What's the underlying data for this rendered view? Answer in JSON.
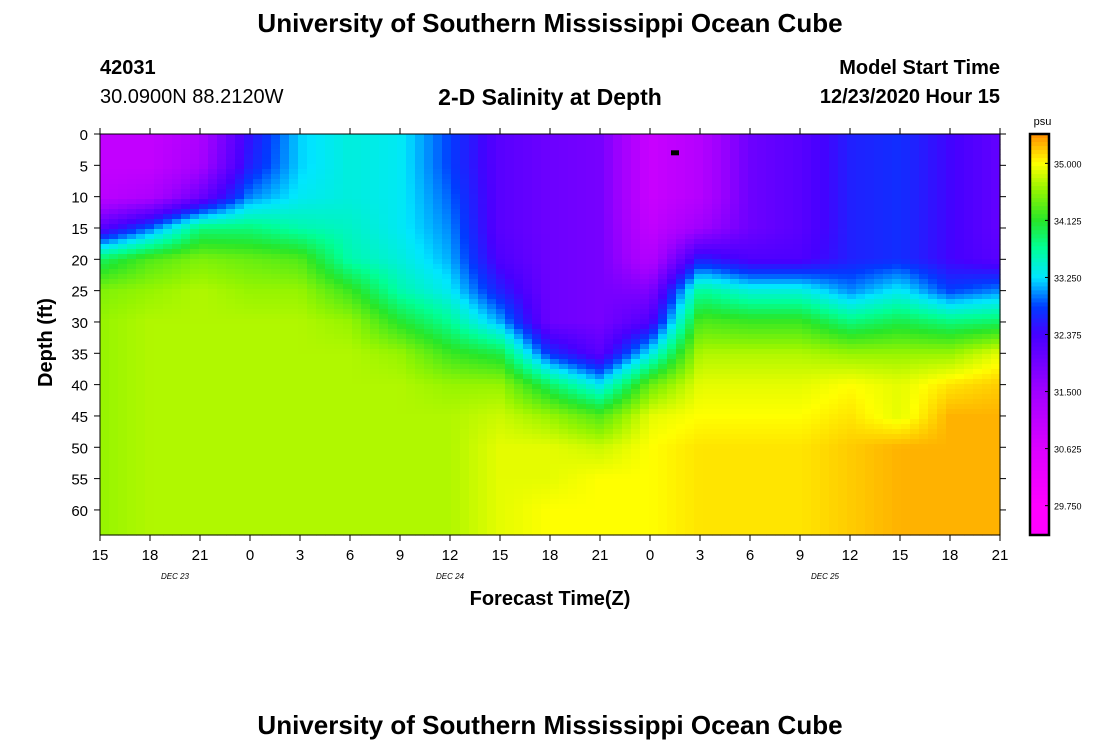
{
  "header": {
    "title": "University of Southern Mississippi Ocean Cube",
    "footer_title": "University of Southern Mississippi Ocean Cube",
    "station_id": "42031",
    "station_coords": "30.0900N 88.2120W",
    "plot_title": "2-D Salinity at Depth",
    "model_start_label": "Model Start Time",
    "model_start_value": "12/23/2020 Hour 15"
  },
  "chart_data": {
    "type": "heatmap",
    "title": "2-D Salinity at Depth",
    "xlabel": "Forecast Time(Z)",
    "ylabel": "Depth (ft)",
    "x_ticks": [
      "15",
      "18",
      "21",
      "0",
      "3",
      "6",
      "9",
      "12",
      "15",
      "18",
      "21",
      "0",
      "3",
      "6",
      "9",
      "12",
      "15",
      "18",
      "21"
    ],
    "x_range_hours": [
      0,
      54
    ],
    "date_labels": [
      {
        "label": "DEC 23",
        "hour": 4.5
      },
      {
        "label": "DEC 24",
        "hour": 21
      },
      {
        "label": "DEC 25",
        "hour": 43.5
      }
    ],
    "y_ticks": [
      0,
      5,
      10,
      15,
      20,
      25,
      30,
      35,
      40,
      45,
      50,
      55,
      60
    ],
    "ylim": [
      0,
      64
    ],
    "colorbar": {
      "unit": "psu",
      "tick_values": [
        35.0,
        34.125,
        33.25,
        32.375,
        31.5,
        30.625,
        29.75
      ],
      "tick_labels": [
        "35.000",
        "34.125",
        "33.250",
        "32.375",
        "31.500",
        "30.625",
        "29.750"
      ],
      "range": [
        29.3,
        35.45
      ]
    },
    "profile_hours": [
      0,
      3,
      6,
      9,
      12,
      15,
      18,
      21,
      24,
      27,
      30,
      33,
      36,
      39,
      42,
      45,
      48,
      51,
      54
    ],
    "profile_depths_ft": [
      0,
      5,
      10,
      15,
      20,
      25,
      30,
      35,
      40,
      45,
      50,
      55,
      60,
      64
    ],
    "salinity_psu": [
      [
        31.0,
        31.0,
        31.1,
        32.2,
        33.9,
        34.5,
        34.6,
        34.6,
        34.6,
        34.6,
        34.6,
        34.6,
        34.6,
        34.6
      ],
      [
        31.0,
        31.0,
        31.3,
        32.9,
        34.3,
        34.6,
        34.7,
        34.7,
        34.7,
        34.7,
        34.7,
        34.7,
        34.7,
        34.7
      ],
      [
        31.3,
        31.4,
        32.0,
        33.8,
        34.5,
        34.7,
        34.7,
        34.7,
        34.7,
        34.7,
        34.7,
        34.7,
        34.7,
        34.7
      ],
      [
        32.5,
        32.6,
        33.0,
        33.8,
        34.4,
        34.6,
        34.7,
        34.7,
        34.7,
        34.7,
        34.7,
        34.7,
        34.7,
        34.7
      ],
      [
        33.2,
        33.2,
        33.3,
        33.6,
        34.3,
        34.6,
        34.7,
        34.7,
        34.7,
        34.7,
        34.7,
        34.7,
        34.7,
        34.7
      ],
      [
        33.4,
        33.4,
        33.4,
        33.5,
        33.6,
        34.2,
        34.6,
        34.7,
        34.7,
        34.7,
        34.7,
        34.7,
        34.7,
        34.7
      ],
      [
        33.3,
        33.3,
        33.3,
        33.3,
        33.4,
        33.6,
        34.1,
        34.6,
        34.7,
        34.7,
        34.7,
        34.7,
        34.7,
        34.7
      ],
      [
        32.8,
        32.8,
        32.9,
        33.0,
        33.1,
        33.3,
        33.7,
        34.2,
        34.6,
        34.7,
        34.7,
        34.7,
        34.7,
        34.7
      ],
      [
        32.2,
        32.2,
        32.2,
        32.2,
        32.3,
        32.6,
        33.1,
        34.0,
        34.6,
        34.8,
        34.9,
        34.9,
        34.9,
        34.9
      ],
      [
        32.0,
        32.0,
        32.0,
        32.0,
        32.0,
        32.0,
        32.0,
        32.7,
        33.9,
        34.6,
        34.9,
        34.9,
        35.0,
        35.0
      ],
      [
        31.9,
        31.9,
        31.9,
        31.9,
        31.9,
        31.9,
        31.9,
        32.2,
        33.3,
        34.3,
        34.8,
        35.0,
        35.0,
        35.0
      ],
      [
        30.9,
        30.9,
        30.9,
        31.0,
        31.2,
        31.8,
        32.3,
        33.3,
        34.4,
        34.9,
        35.0,
        35.0,
        35.0,
        35.0
      ],
      [
        31.2,
        31.2,
        31.2,
        31.5,
        32.6,
        33.7,
        34.3,
        34.7,
        34.9,
        35.0,
        35.1,
        35.1,
        35.1,
        35.1
      ],
      [
        32.0,
        32.0,
        32.0,
        32.0,
        32.3,
        33.4,
        34.2,
        34.7,
        34.9,
        35.0,
        35.1,
        35.1,
        35.1,
        35.1
      ],
      [
        32.2,
        32.2,
        32.2,
        32.2,
        32.3,
        33.4,
        34.2,
        34.7,
        34.9,
        35.0,
        35.1,
        35.1,
        35.1,
        35.1
      ],
      [
        32.6,
        32.6,
        32.6,
        32.6,
        32.6,
        33.0,
        33.8,
        34.6,
        35.0,
        35.1,
        35.2,
        35.2,
        35.2,
        35.2
      ],
      [
        32.7,
        32.7,
        32.7,
        32.7,
        32.7,
        33.3,
        34.0,
        34.6,
        34.9,
        34.9,
        35.3,
        35.3,
        35.3,
        35.3
      ],
      [
        32.4,
        32.4,
        32.4,
        32.4,
        32.4,
        32.8,
        33.8,
        34.6,
        35.1,
        35.3,
        35.3,
        35.3,
        35.3,
        35.3
      ],
      [
        32.1,
        32.1,
        32.1,
        32.1,
        32.2,
        33.0,
        33.9,
        34.9,
        35.2,
        35.3,
        35.3,
        35.3,
        35.3,
        35.3
      ]
    ],
    "marker": {
      "hour": 34.5,
      "depth_ft": 3
    }
  }
}
